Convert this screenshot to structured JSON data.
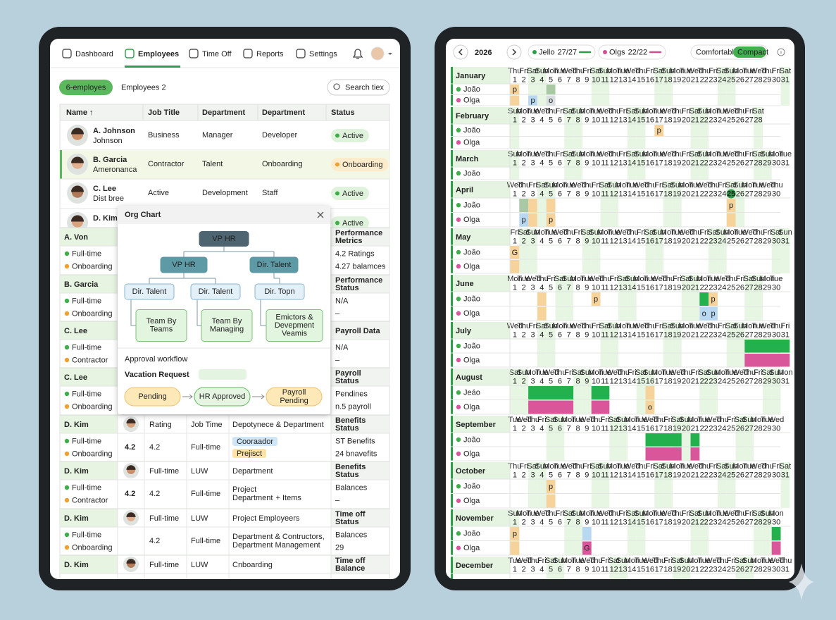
{
  "left": {
    "nav": {
      "tabs": [
        "Dashboard",
        "Employees",
        "Time Off",
        "Reports",
        "Settings"
      ],
      "active": "Employees"
    },
    "filters": {
      "chip": "6-employes",
      "tab": "Employees 2",
      "search": "Search tiex"
    },
    "table": {
      "headers": [
        "Name ↑",
        "Job Title",
        "Department",
        "Department",
        "Status"
      ],
      "rows": [
        {
          "name": "A. Johnson",
          "sub": "Johnson",
          "cells": [
            "Business",
            "Manager",
            "Developer"
          ],
          "status": "Active",
          "tone": "green"
        },
        {
          "name": "B. Garcia",
          "sub": "Ameronanca",
          "cells": [
            "Contractor",
            "Talent",
            "Onboarding"
          ],
          "status": "Onboarding",
          "tone": "orange",
          "selected": true
        },
        {
          "name": "C. Lee",
          "sub": "Dist bree",
          "cells": [
            "Active",
            "Development",
            "Staff"
          ],
          "status": "Active",
          "tone": "green"
        },
        {
          "name": "D. Kim",
          "cells": [],
          "status": "Active",
          "tone": "green"
        }
      ]
    },
    "groups": [
      {
        "name": "A. Von",
        "items": [
          {
            "label": "Full-time",
            "tone": "green"
          },
          {
            "label": "Onboarding",
            "tone": "orange"
          }
        ],
        "side_title": [
          "Performance",
          "Metrics"
        ],
        "side_items": [
          "4.2 Ratings",
          "4.27 balamces"
        ]
      },
      {
        "name": "B. Garcia",
        "items": [
          {
            "label": "Full-time",
            "tone": "green"
          },
          {
            "label": "Onboarding",
            "tone": "orange"
          }
        ],
        "side_title": [
          "Performance",
          "Status"
        ],
        "side_items": [
          "N/A",
          "–"
        ]
      },
      {
        "name": "C. Lee",
        "items": [
          {
            "label": "Full-time",
            "tone": "green"
          },
          {
            "label": "Contractor",
            "tone": "orange"
          }
        ],
        "side_title": [
          "Payroll Data"
        ],
        "side_items": [
          "N/A",
          "–"
        ]
      },
      {
        "name": "C. Lee",
        "items": [
          {
            "label": "Full-time",
            "tone": "green"
          },
          {
            "label": "Onboarding",
            "tone": "orange"
          }
        ],
        "side_title": [
          "Payroll",
          "Status"
        ],
        "side_items": [
          "Pendines",
          "n.5 payroll"
        ]
      },
      {
        "name": "D. Kim",
        "items": [
          {
            "label": "Full-time",
            "tone": "green"
          },
          {
            "label": "Onboarding",
            "tone": "orange"
          }
        ],
        "head": [
          "Rating",
          "Job Time",
          "Depotynece & Department"
        ],
        "score": 4.2,
        "rating": 4.2,
        "role": "Full-time",
        "tags": [
          "Cooraador",
          "Prejisct"
        ],
        "side_title": [
          "Benefits",
          "Status"
        ],
        "side_items": [
          "ST Benefits",
          "24 bnavefits"
        ]
      },
      {
        "name": "D. Kim",
        "items": [
          {
            "label": "Full-time",
            "tone": "green"
          },
          {
            "label": "Contractor",
            "tone": "orange"
          }
        ],
        "head": [
          "Full-time",
          "LUW",
          "Department"
        ],
        "score": 4.2,
        "rating": 4.2,
        "role": "Full-time",
        "note": [
          "Project",
          "Department"
        ],
        "note_extra": "+ Items",
        "side_title": [
          "Benefits",
          "Status"
        ],
        "side_items": [
          "Balances",
          "–"
        ]
      },
      {
        "name": "D. Kim",
        "items": [
          {
            "label": "Full-time",
            "tone": "green"
          },
          {
            "label": "Onboarding",
            "tone": "orange"
          }
        ],
        "head": [
          "Full-time",
          "LUW",
          "Project Employeers"
        ],
        "rating": 4.2,
        "role": "Full-time",
        "note": [
          "Department & Contructors,",
          "Department Management"
        ],
        "side_title": [
          "Time off",
          "Status"
        ],
        "side_items": [
          "Balances",
          "29"
        ]
      },
      {
        "name": "D. Kim",
        "items": [],
        "head": [
          "Full-time",
          "LUW",
          "Cnboarding"
        ],
        "side_title": [
          "Time off",
          "Balance"
        ],
        "side_items": []
      }
    ]
  },
  "modal": {
    "title": "Org Chart",
    "nodes": [
      {
        "lines": [
          "VP HR"
        ],
        "level": 0
      },
      {
        "lines": [
          "VP HR"
        ],
        "level": 1
      },
      {
        "lines": [
          "Dir. Talent"
        ],
        "level": 1
      },
      {
        "lines": [
          "Dir. Talent"
        ],
        "level": 2
      },
      {
        "lines": [
          "Dir. Talent"
        ],
        "level": 2
      },
      {
        "lines": [
          "Dir. Topn"
        ],
        "level": 2
      },
      {
        "lines": [
          "Team By",
          "Teams"
        ],
        "level": 3
      },
      {
        "lines": [
          "Team By",
          "Managing"
        ],
        "level": 3
      },
      {
        "lines": [
          "Emictors &",
          "Devepment",
          "Veamis"
        ],
        "level": 3
      }
    ],
    "workflow_title": "Approval workflow",
    "request": "Vacation Request",
    "steps": [
      {
        "lines": [
          "Pending"
        ],
        "tone": "orange"
      },
      {
        "lines": [
          "HR Approved"
        ],
        "tone": "green"
      },
      {
        "lines": [
          "Payroll",
          "Pending"
        ],
        "tone": "orange"
      }
    ]
  },
  "calendar": {
    "year": 2026,
    "people": [
      {
        "name": "Jello",
        "count": "27/27",
        "color": "#2e9e4a"
      },
      {
        "name": "Olgs",
        "count": "22/22",
        "color": "#d0508f"
      }
    ],
    "views": [
      "Comfortable",
      "Compact"
    ],
    "active_view": "Compact",
    "weekdays": [
      "Sun",
      "Mon",
      "Tue",
      "Wed",
      "Thu",
      "Fri",
      "Sat"
    ],
    "day_numbers": [
      1,
      2,
      3,
      4,
      5,
      6,
      7,
      8,
      9,
      10,
      11,
      12,
      13,
      14,
      15,
      16,
      17,
      18,
      19,
      20,
      21,
      22,
      23,
      24,
      25,
      26,
      27,
      28,
      29,
      30,
      31
    ],
    "highlight": {
      "month": "April",
      "day": 25
    },
    "months": [
      {
        "name": "January",
        "days": 31,
        "first": "Thu",
        "rows": [
          "João",
          "Olga"
        ],
        "events": [
          {
            "row": 0,
            "start": 1,
            "end": 1,
            "color": "tan",
            "label": "p"
          },
          {
            "row": 0,
            "start": 5,
            "end": 5,
            "color": "sage"
          },
          {
            "row": 1,
            "start": 1,
            "end": 1,
            "color": "tan"
          },
          {
            "row": 1,
            "start": 3,
            "end": 3,
            "color": "blue",
            "label": "p"
          },
          {
            "row": 1,
            "start": 5,
            "end": 5,
            "color": "gray",
            "label": "o"
          }
        ]
      },
      {
        "name": "February",
        "days": 28,
        "first": "Sun",
        "rows": [
          "João",
          "Olga"
        ],
        "events": [
          {
            "row": 0,
            "start": 17,
            "end": 17,
            "color": "tan",
            "label": "p"
          }
        ]
      },
      {
        "name": "March",
        "days": 31,
        "first": "Sun",
        "rows": [
          "João"
        ],
        "events": []
      },
      {
        "name": "April",
        "days": 30,
        "first": "Wed",
        "rows": [
          "João",
          "Olga"
        ],
        "events": [
          {
            "row": 0,
            "start": 2,
            "end": 2,
            "color": "sage"
          },
          {
            "row": 0,
            "start": 3,
            "end": 3,
            "color": "tan"
          },
          {
            "row": 0,
            "start": 5,
            "end": 5,
            "color": "tan"
          },
          {
            "row": 0,
            "start": 25,
            "end": 25,
            "color": "tan",
            "label": "p"
          },
          {
            "row": 1,
            "start": 2,
            "end": 2,
            "color": "blue",
            "label": "p"
          },
          {
            "row": 1,
            "start": 3,
            "end": 3,
            "color": "tan"
          },
          {
            "row": 1,
            "start": 5,
            "end": 5,
            "color": "tan",
            "label": "p"
          },
          {
            "row": 1,
            "start": 25,
            "end": 25,
            "color": "tan"
          }
        ]
      },
      {
        "name": "May",
        "days": 31,
        "first": "Fri",
        "rows": [
          "João",
          "Olga"
        ],
        "events": [
          {
            "row": 0,
            "start": 1,
            "end": 1,
            "color": "tan",
            "label": "G"
          },
          {
            "row": 1,
            "start": 1,
            "end": 1,
            "color": "tan"
          }
        ]
      },
      {
        "name": "June",
        "days": 30,
        "first": "Mon",
        "rows": [
          "João",
          "Olga"
        ],
        "events": [
          {
            "row": 0,
            "start": 4,
            "end": 4,
            "color": "tan"
          },
          {
            "row": 0,
            "start": 10,
            "end": 10,
            "color": "tan",
            "label": "p"
          },
          {
            "row": 0,
            "start": 22,
            "end": 22,
            "color": "green"
          },
          {
            "row": 0,
            "start": 23,
            "end": 23,
            "color": "tan",
            "label": "p"
          },
          {
            "row": 1,
            "start": 4,
            "end": 4,
            "color": "tan"
          },
          {
            "row": 1,
            "start": 22,
            "end": 22,
            "color": "blue",
            "label": "o"
          },
          {
            "row": 1,
            "start": 23,
            "end": 23,
            "color": "blue",
            "label": "p"
          }
        ]
      },
      {
        "name": "July",
        "days": 31,
        "first": "Wed",
        "rows": [
          "João",
          "Olga"
        ],
        "events": [
          {
            "row": 0,
            "start": 27,
            "end": 31,
            "color": "green"
          },
          {
            "row": 1,
            "start": 27,
            "end": 31,
            "color": "pink"
          }
        ]
      },
      {
        "name": "August",
        "days": 31,
        "first": "Sat",
        "rows": [
          "Jeáo",
          "Olga"
        ],
        "events": [
          {
            "row": 0,
            "start": 3,
            "end": 7,
            "color": "green"
          },
          {
            "row": 0,
            "start": 10,
            "end": 11,
            "color": "green"
          },
          {
            "row": 0,
            "start": 16,
            "end": 16,
            "color": "tan"
          },
          {
            "row": 1,
            "start": 3,
            "end": 7,
            "color": "pink"
          },
          {
            "row": 1,
            "start": 10,
            "end": 11,
            "color": "pink"
          },
          {
            "row": 1,
            "start": 16,
            "end": 16,
            "color": "tan",
            "label": "o"
          }
        ]
      },
      {
        "name": "September",
        "days": 30,
        "first": "Tue",
        "rows": [
          "João",
          "Olga"
        ],
        "events": [
          {
            "row": 0,
            "start": 16,
            "end": 19,
            "color": "green"
          },
          {
            "row": 0,
            "start": 21,
            "end": 21,
            "color": "green"
          },
          {
            "row": 1,
            "start": 16,
            "end": 19,
            "color": "pink"
          },
          {
            "row": 1,
            "start": 21,
            "end": 21,
            "color": "pink"
          }
        ]
      },
      {
        "name": "October",
        "days": 31,
        "first": "Thu",
        "rows": [
          "João",
          "Olga"
        ],
        "events": [
          {
            "row": 0,
            "start": 5,
            "end": 5,
            "color": "tan",
            "label": "p"
          },
          {
            "row": 1,
            "start": 5,
            "end": 5,
            "color": "tan"
          }
        ]
      },
      {
        "name": "November",
        "days": 30,
        "first": "Sun",
        "rows": [
          "João",
          "Olga"
        ],
        "events": [
          {
            "row": 0,
            "start": 1,
            "end": 1,
            "color": "tan",
            "label": "p"
          },
          {
            "row": 0,
            "start": 9,
            "end": 9,
            "color": "blue"
          },
          {
            "row": 0,
            "start": 30,
            "end": 30,
            "color": "green"
          },
          {
            "row": 1,
            "start": 1,
            "end": 1,
            "color": "tan"
          },
          {
            "row": 1,
            "start": 9,
            "end": 9,
            "color": "pink",
            "label": "G"
          },
          {
            "row": 1,
            "start": 30,
            "end": 30,
            "color": "pink"
          }
        ]
      },
      {
        "name": "December",
        "days": 31,
        "first": "Tue",
        "rows": [],
        "events": []
      }
    ]
  }
}
